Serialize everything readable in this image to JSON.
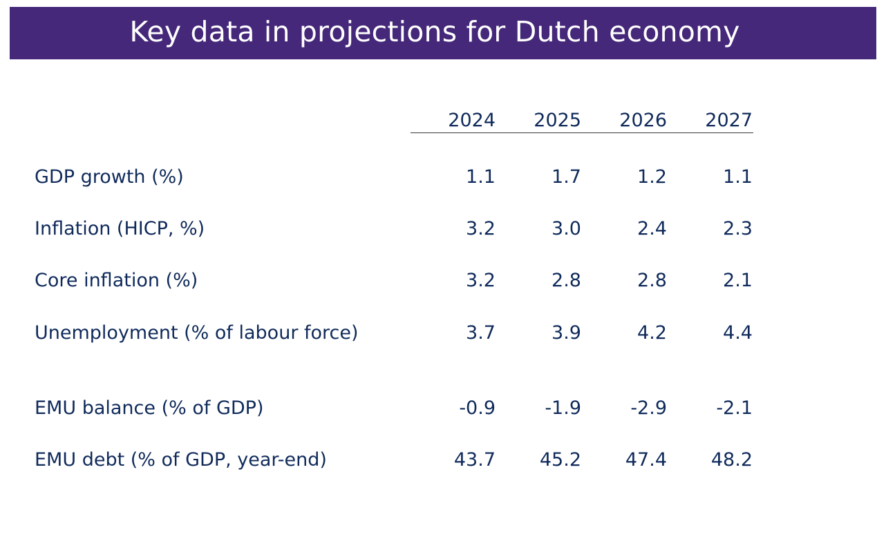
{
  "title": "Key data in projections for Dutch economy",
  "table": {
    "years": [
      "2024",
      "2025",
      "2026",
      "2027"
    ],
    "rows": [
      {
        "label": "GDP growth (%)",
        "values": [
          "1.1",
          "1.7",
          "1.2",
          "1.1"
        ]
      },
      {
        "label": "Inflation (HICP, %)",
        "values": [
          "3.2",
          "3.0",
          "2.4",
          "2.3"
        ]
      },
      {
        "label": "Core inflation (%)",
        "values": [
          "3.2",
          "2.8",
          "2.8",
          "2.1"
        ]
      },
      {
        "label": "Unemployment (% of labour force)",
        "values": [
          "3.7",
          "3.9",
          "4.2",
          "4.4"
        ]
      },
      {
        "label": "EMU balance (% of GDP)",
        "values": [
          "-0.9",
          "-1.9",
          "-2.9",
          "-2.1"
        ]
      },
      {
        "label": "EMU debt (% of GDP, year-end)",
        "values": [
          "43.7",
          "45.2",
          "47.4",
          "48.2"
        ]
      }
    ]
  },
  "colors": {
    "title_bar": "#452879",
    "title_text": "#ffffff",
    "body_text": "#0f2a5a"
  }
}
